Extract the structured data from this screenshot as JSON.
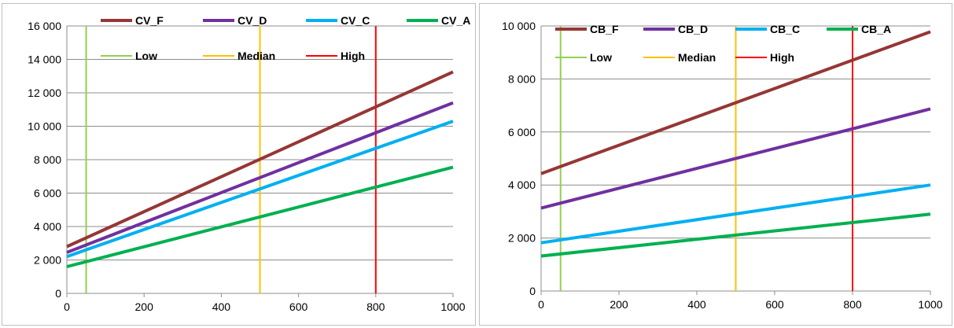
{
  "chart_data": [
    {
      "type": "line",
      "xlim": [
        0,
        1000
      ],
      "ylim": [
        0,
        16000
      ],
      "x_ticks": [
        "0",
        "200",
        "400",
        "600",
        "800",
        "1000"
      ],
      "y_ticks": [
        "0",
        "2 000",
        "4 000",
        "6 000",
        "8 000",
        "10 000",
        "12 000",
        "14 000",
        "16 000"
      ],
      "grid": "horizontal",
      "legend": "top-inside",
      "series": [
        {
          "name": "CV_F",
          "color": "#953735",
          "x": [
            0,
            1000
          ],
          "y": [
            2800,
            13250
          ]
        },
        {
          "name": "CV_D",
          "color": "#7030a0",
          "x": [
            0,
            1000
          ],
          "y": [
            2450,
            11400
          ]
        },
        {
          "name": "CV_C",
          "color": "#00b0f0",
          "x": [
            0,
            1000
          ],
          "y": [
            2200,
            10300
          ]
        },
        {
          "name": "CV_A",
          "color": "#00b050",
          "x": [
            0,
            1000
          ],
          "y": [
            1600,
            7550
          ]
        }
      ],
      "vlines": [
        {
          "name": "Low",
          "color": "#92d050",
          "x": 50
        },
        {
          "name": "Median",
          "color": "#ffc000",
          "x": 500
        },
        {
          "name": "High",
          "color": "#ff0000",
          "x": 800
        }
      ]
    },
    {
      "type": "line",
      "xlim": [
        0,
        1000
      ],
      "ylim": [
        0,
        10000
      ],
      "x_ticks": [
        "0",
        "200",
        "400",
        "600",
        "800",
        "1000"
      ],
      "y_ticks": [
        "0",
        "2 000",
        "4 000",
        "6 000",
        "8 000",
        "10 000"
      ],
      "grid": "horizontal",
      "legend": "top-inside",
      "series": [
        {
          "name": "CB_F",
          "color": "#953735",
          "x": [
            0,
            1000
          ],
          "y": [
            4430,
            9780
          ]
        },
        {
          "name": "CB_D",
          "color": "#7030a0",
          "x": [
            0,
            1000
          ],
          "y": [
            3130,
            6870
          ]
        },
        {
          "name": "CB_C",
          "color": "#00b0f0",
          "x": [
            0,
            1000
          ],
          "y": [
            1820,
            4000
          ]
        },
        {
          "name": "CB_A",
          "color": "#00b050",
          "x": [
            0,
            1000
          ],
          "y": [
            1320,
            2900
          ]
        }
      ],
      "vlines": [
        {
          "name": "Low",
          "color": "#92d050",
          "x": 50
        },
        {
          "name": "Median",
          "color": "#ffc000",
          "x": 500
        },
        {
          "name": "High",
          "color": "#ff0000",
          "x": 800
        }
      ]
    }
  ]
}
